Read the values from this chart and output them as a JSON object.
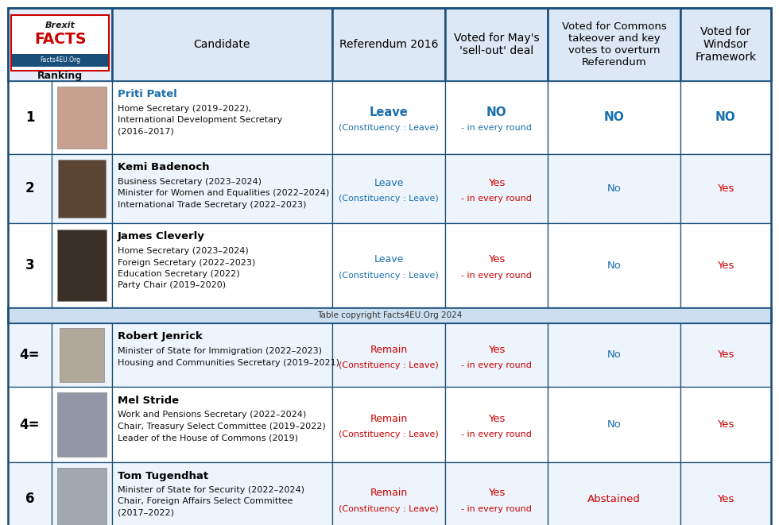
{
  "copyright_text": "Table copyright Facts4EU.Org 2024",
  "header_bg": "#dce8f5",
  "border_color": "#1a4f7a",
  "sep_bg": "#ccdff0",
  "candidates": [
    {
      "rank": "1",
      "name": "Priti Patel",
      "roles": [
        "Home Secretary (2019–2022),",
        "International Development Secretary",
        "(2016–2017)"
      ],
      "referendum": "Leave",
      "constituency": "(Constituency : Leave)",
      "ref_color": "#1a6faf",
      "voted_may_line1": "NO",
      "voted_may_line2": "- in every round",
      "voted_may_color": "#1a6faf",
      "commons_takeover": "NO",
      "commons_color": "#1a6faf",
      "windsor": "NO",
      "windsor_color": "#1a6faf",
      "name_bold": true,
      "name_color": "#1a6faf",
      "photo_color": "#c8a090"
    },
    {
      "rank": "2",
      "name": "Kemi Badenoch",
      "roles": [
        "Business Secretary (2023–2024)",
        "Minister for Women and Equalities (2022–2024)",
        "International Trade Secretary (2022–2023)"
      ],
      "referendum": "Leave",
      "constituency": "(Constituency : Leave)",
      "ref_color": "#1a6faf",
      "voted_may_line1": "Yes",
      "voted_may_line2": "- in every round",
      "voted_may_color": "#cc0000",
      "commons_takeover": "No",
      "commons_color": "#1a6faf",
      "windsor": "Yes",
      "windsor_color": "#cc0000",
      "name_bold": true,
      "name_color": "#000000",
      "photo_color": "#5a4535"
    },
    {
      "rank": "3",
      "name": "James Cleverly",
      "roles": [
        "Home Secretary (2023–2024)",
        "Foreign Secretary (2022–2023)",
        "Education Secretary (2022)",
        "Party Chair (2019–2020)"
      ],
      "referendum": "Leave",
      "constituency": "(Constituency : Leave)",
      "ref_color": "#1a6faf",
      "voted_may_line1": "Yes",
      "voted_may_line2": "- in every round",
      "voted_may_color": "#cc0000",
      "commons_takeover": "No",
      "commons_color": "#1a6faf",
      "windsor": "Yes",
      "windsor_color": "#cc0000",
      "name_bold": true,
      "name_color": "#000000",
      "photo_color": "#3a3028"
    },
    {
      "rank": "4=",
      "name": "Robert Jenrick",
      "roles": [
        "Minister of State for Immigration (2022–2023)",
        "Housing and Communities Secretary (2019–2021)"
      ],
      "referendum": "Remain",
      "constituency": "(Constituency : Leave)",
      "ref_color": "#cc0000",
      "voted_may_line1": "Yes",
      "voted_may_line2": "- in every round",
      "voted_may_color": "#cc0000",
      "commons_takeover": "No",
      "commons_color": "#1a6faf",
      "windsor": "Yes",
      "windsor_color": "#cc0000",
      "name_bold": true,
      "name_color": "#000000",
      "photo_color": "#b0a898"
    },
    {
      "rank": "4=",
      "name": "Mel Stride",
      "roles": [
        "Work and Pensions Secretary (2022–2024)",
        "Chair, Treasury Select Committee (2019–2022)",
        "Leader of the House of Commons (2019)"
      ],
      "referendum": "Remain",
      "constituency": "(Constituency : Leave)",
      "ref_color": "#cc0000",
      "voted_may_line1": "Yes",
      "voted_may_line2": "- in every round",
      "voted_may_color": "#cc0000",
      "commons_takeover": "No",
      "commons_color": "#1a6faf",
      "windsor": "Yes",
      "windsor_color": "#cc0000",
      "name_bold": true,
      "name_color": "#000000",
      "photo_color": "#9098a8"
    },
    {
      "rank": "6",
      "name": "Tom Tugendhat",
      "roles": [
        "Minister of State for Security (2022–2024)",
        "Chair, Foreign Affairs Select Committee",
        "(2017–2022)"
      ],
      "referendum": "Remain",
      "constituency": "(Constituency : Leave)",
      "ref_color": "#cc0000",
      "voted_may_line1": "Yes",
      "voted_may_line2": "- in every round",
      "voted_may_color": "#cc0000",
      "commons_takeover": "Abstained",
      "commons_color": "#cc0000",
      "windsor": "Yes",
      "windsor_color": "#cc0000",
      "name_bold": true,
      "name_color": "#000000",
      "photo_color": "#a0a8b0"
    }
  ]
}
